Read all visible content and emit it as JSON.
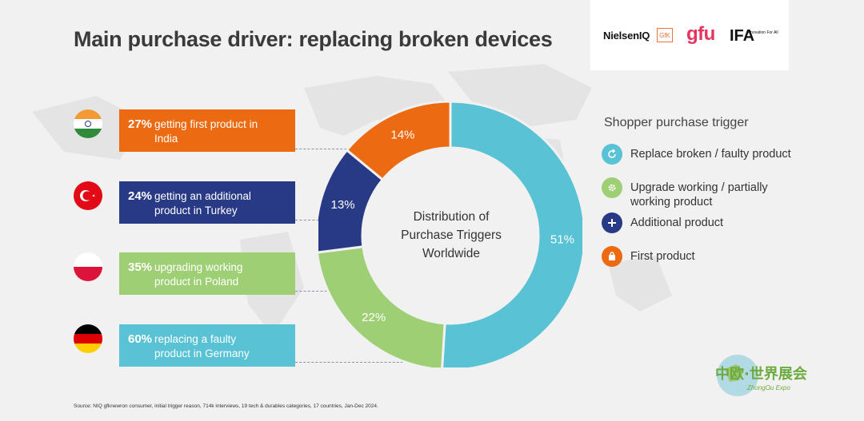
{
  "title": "Main purchase driver: replacing broken devices",
  "logos": {
    "nielsen": "NielsenIQ",
    "gfk": "GfK",
    "gfu": "gfu",
    "ifa": "IFA",
    "ifa_tagline": "Innovation For All"
  },
  "callouts": [
    {
      "pct": "27%",
      "text": "getting first product in India",
      "color": "#ec6b12",
      "flag": "india"
    },
    {
      "pct": "24%",
      "text": "getting an additional product in Turkey",
      "color": "#283a85",
      "flag": "turkey"
    },
    {
      "pct": "35%",
      "text": "upgrading working product in Poland",
      "color": "#9fcf75",
      "flag": "poland"
    },
    {
      "pct": "60%",
      "text": "replacing a faulty product in Germany",
      "color": "#59c2d4",
      "flag": "germany"
    }
  ],
  "legend": {
    "title": "Shopper purchase trigger",
    "items": [
      {
        "label": "Replace broken / faulty product",
        "color": "#59c2d4",
        "icon": "refresh-icon"
      },
      {
        "label": "Upgrade working / partially working product",
        "color": "#9fcf75",
        "icon": "gear-icon"
      },
      {
        "label": "Additional product",
        "color": "#283a85",
        "icon": "plus-icon"
      },
      {
        "label": "First product",
        "color": "#ec6b12",
        "icon": "bag-icon"
      }
    ]
  },
  "chart_data": {
    "type": "pie",
    "title": "Distribution of Purchase Triggers Worldwide",
    "donut": true,
    "slices": [
      {
        "name": "Replace broken / faulty product",
        "value": 51,
        "label": "51%",
        "color": "#59c2d4"
      },
      {
        "name": "Upgrade working / partially working product",
        "value": 22,
        "label": "22%",
        "color": "#9fcf75"
      },
      {
        "name": "Additional product",
        "value": 13,
        "label": "13%",
        "color": "#283a85"
      },
      {
        "name": "First product",
        "value": 14,
        "label": "14%",
        "color": "#ec6b12"
      }
    ]
  },
  "source": "Source: NIQ gfknewron consumer, initial trigger reason, 714k interviews, 19 tech & durables categories, 17 countries, Jan-Dec 2024.",
  "expo": {
    "cn": "中欧·世界展会",
    "en": "ZhongOu Expo"
  }
}
